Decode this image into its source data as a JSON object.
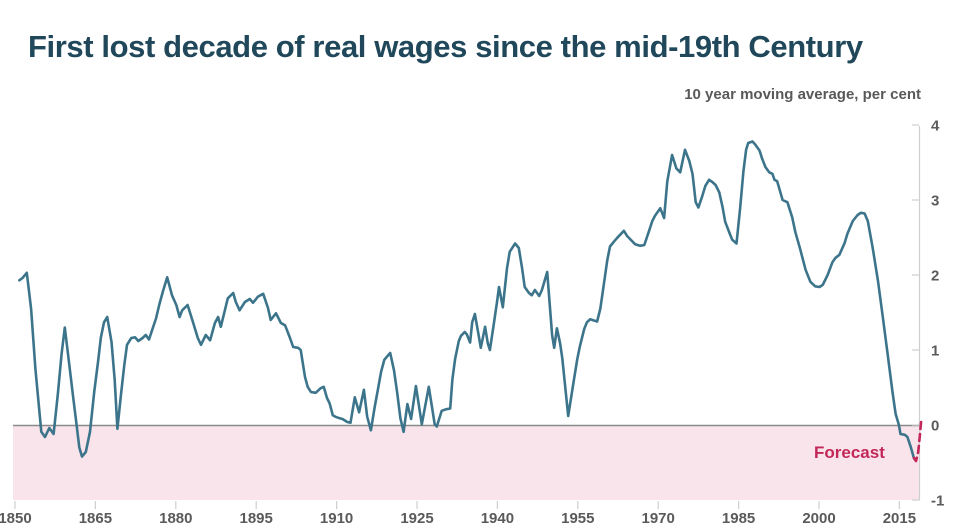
{
  "chart_data": {
    "type": "line",
    "title": "First lost decade of real wages since the mid-19th Century",
    "subtitle": "10 year moving average, per cent",
    "forecast_label": "Forecast",
    "xlim": [
      1850,
      2019.5
    ],
    "ylim": [
      -1,
      4
    ],
    "x_ticks": [
      1850,
      1865,
      1880,
      1895,
      1910,
      1925,
      1940,
      1955,
      1970,
      1985,
      2000,
      2015
    ],
    "y_ticks": [
      -1,
      0,
      1,
      2,
      3,
      4
    ],
    "legend_position": "none",
    "layout": {
      "y_axis_side": "right",
      "zero_line": true,
      "negative_region_shaded": true,
      "gridlines": false
    },
    "colors": {
      "line": "#3c758b",
      "forecast": "#c3275a",
      "negative_region": "#f8e4ea",
      "zero_line": "#8a8a8a",
      "axis": "#cfcfcf",
      "tick_label": "#5a5a5a",
      "title": "#20485a",
      "subtitle": "#595959"
    },
    "series": [
      {
        "id": "real-wages",
        "style": "solid",
        "color": "#3c758b",
        "points": [
          [
            1850.8,
            1.93
          ],
          [
            1851.4,
            1.96
          ],
          [
            1852.2,
            2.03
          ],
          [
            1853.0,
            1.55
          ],
          [
            1853.8,
            0.75
          ],
          [
            1854.9,
            -0.09
          ],
          [
            1855.6,
            -0.16
          ],
          [
            1856.4,
            -0.04
          ],
          [
            1857.2,
            -0.12
          ],
          [
            1858.0,
            0.42
          ],
          [
            1858.7,
            0.95
          ],
          [
            1859.3,
            1.3
          ],
          [
            1860.0,
            0.88
          ],
          [
            1860.8,
            0.4
          ],
          [
            1861.5,
            0.0
          ],
          [
            1862.0,
            -0.3
          ],
          [
            1862.5,
            -0.42
          ],
          [
            1863.2,
            -0.36
          ],
          [
            1864.0,
            -0.09
          ],
          [
            1864.8,
            0.45
          ],
          [
            1865.5,
            0.85
          ],
          [
            1866.0,
            1.16
          ],
          [
            1866.6,
            1.37
          ],
          [
            1867.2,
            1.44
          ],
          [
            1868.0,
            1.11
          ],
          [
            1868.6,
            0.6
          ],
          [
            1869.1,
            -0.05
          ],
          [
            1869.8,
            0.42
          ],
          [
            1870.4,
            0.8
          ],
          [
            1870.9,
            1.07
          ],
          [
            1871.7,
            1.16
          ],
          [
            1872.4,
            1.17
          ],
          [
            1873.0,
            1.12
          ],
          [
            1873.8,
            1.16
          ],
          [
            1874.4,
            1.2
          ],
          [
            1875.0,
            1.14
          ],
          [
            1875.6,
            1.27
          ],
          [
            1876.3,
            1.42
          ],
          [
            1876.9,
            1.6
          ],
          [
            1877.6,
            1.78
          ],
          [
            1878.4,
            1.97
          ],
          [
            1879.3,
            1.73
          ],
          [
            1880.1,
            1.6
          ],
          [
            1880.7,
            1.44
          ],
          [
            1881.2,
            1.53
          ],
          [
            1882.2,
            1.6
          ],
          [
            1883.2,
            1.37
          ],
          [
            1884.1,
            1.16
          ],
          [
            1884.7,
            1.07
          ],
          [
            1885.6,
            1.2
          ],
          [
            1886.4,
            1.13
          ],
          [
            1887.3,
            1.36
          ],
          [
            1887.9,
            1.44
          ],
          [
            1888.4,
            1.31
          ],
          [
            1889.7,
            1.69
          ],
          [
            1890.7,
            1.76
          ],
          [
            1891.2,
            1.64
          ],
          [
            1891.9,
            1.53
          ],
          [
            1892.9,
            1.64
          ],
          [
            1893.8,
            1.68
          ],
          [
            1894.4,
            1.63
          ],
          [
            1895.3,
            1.71
          ],
          [
            1896.3,
            1.75
          ],
          [
            1897.2,
            1.56
          ],
          [
            1897.7,
            1.4
          ],
          [
            1898.7,
            1.49
          ],
          [
            1899.6,
            1.36
          ],
          [
            1900.4,
            1.33
          ],
          [
            1901.3,
            1.16
          ],
          [
            1901.9,
            1.04
          ],
          [
            1902.8,
            1.03
          ],
          [
            1903.3,
            1.0
          ],
          [
            1904.1,
            0.64
          ],
          [
            1904.6,
            0.51
          ],
          [
            1905.2,
            0.44
          ],
          [
            1906.1,
            0.43
          ],
          [
            1907.0,
            0.49
          ],
          [
            1907.6,
            0.51
          ],
          [
            1908.2,
            0.36
          ],
          [
            1908.7,
            0.29
          ],
          [
            1909.3,
            0.13
          ],
          [
            1909.8,
            0.11
          ],
          [
            1910.6,
            0.09
          ],
          [
            1911.1,
            0.08
          ],
          [
            1912.0,
            0.04
          ],
          [
            1912.6,
            0.03
          ],
          [
            1913.4,
            0.37
          ],
          [
            1914.2,
            0.17
          ],
          [
            1915.1,
            0.47
          ],
          [
            1915.7,
            0.11
          ],
          [
            1916.4,
            -0.07
          ],
          [
            1917.1,
            0.24
          ],
          [
            1917.8,
            0.51
          ],
          [
            1918.3,
            0.71
          ],
          [
            1918.9,
            0.87
          ],
          [
            1919.6,
            0.93
          ],
          [
            1920.0,
            0.96
          ],
          [
            1920.7,
            0.73
          ],
          [
            1921.3,
            0.43
          ],
          [
            1921.9,
            0.09
          ],
          [
            1922.5,
            -0.09
          ],
          [
            1923.2,
            0.28
          ],
          [
            1923.9,
            0.08
          ],
          [
            1924.8,
            0.52
          ],
          [
            1925.9,
            0.01
          ],
          [
            1927.2,
            0.51
          ],
          [
            1928.3,
            0.01
          ],
          [
            1928.7,
            -0.02
          ],
          [
            1929.6,
            0.19
          ],
          [
            1930.4,
            0.21
          ],
          [
            1931.2,
            0.22
          ],
          [
            1931.6,
            0.61
          ],
          [
            1932.1,
            0.88
          ],
          [
            1932.8,
            1.12
          ],
          [
            1933.2,
            1.19
          ],
          [
            1933.9,
            1.24
          ],
          [
            1934.3,
            1.21
          ],
          [
            1934.9,
            1.1
          ],
          [
            1935.3,
            1.37
          ],
          [
            1935.8,
            1.48
          ],
          [
            1936.5,
            1.2
          ],
          [
            1936.9,
            1.03
          ],
          [
            1937.7,
            1.31
          ],
          [
            1938.2,
            1.09
          ],
          [
            1938.6,
            1.0
          ],
          [
            1939.3,
            1.33
          ],
          [
            1939.9,
            1.63
          ],
          [
            1940.3,
            1.84
          ],
          [
            1941.0,
            1.57
          ],
          [
            1941.8,
            2.09
          ],
          [
            1942.3,
            2.31
          ],
          [
            1943.3,
            2.42
          ],
          [
            1944.0,
            2.36
          ],
          [
            1944.6,
            2.09
          ],
          [
            1945.1,
            1.84
          ],
          [
            1945.9,
            1.76
          ],
          [
            1946.4,
            1.73
          ],
          [
            1947.0,
            1.8
          ],
          [
            1947.8,
            1.72
          ],
          [
            1948.3,
            1.8
          ],
          [
            1949.3,
            2.04
          ],
          [
            1950.2,
            1.2
          ],
          [
            1950.6,
            1.03
          ],
          [
            1951.1,
            1.29
          ],
          [
            1951.7,
            1.09
          ],
          [
            1952.1,
            0.89
          ],
          [
            1953.2,
            0.12
          ],
          [
            1954.3,
            0.61
          ],
          [
            1954.9,
            0.88
          ],
          [
            1955.4,
            1.05
          ],
          [
            1956.2,
            1.28
          ],
          [
            1956.7,
            1.37
          ],
          [
            1957.3,
            1.41
          ],
          [
            1958.6,
            1.38
          ],
          [
            1959.2,
            1.55
          ],
          [
            1959.9,
            1.9
          ],
          [
            1960.5,
            2.2
          ],
          [
            1961.0,
            2.38
          ],
          [
            1961.8,
            2.45
          ],
          [
            1962.3,
            2.49
          ],
          [
            1963.6,
            2.59
          ],
          [
            1964.2,
            2.52
          ],
          [
            1965.7,
            2.41
          ],
          [
            1966.6,
            2.39
          ],
          [
            1967.4,
            2.4
          ],
          [
            1968.3,
            2.59
          ],
          [
            1968.9,
            2.72
          ],
          [
            1969.4,
            2.79
          ],
          [
            1970.4,
            2.89
          ],
          [
            1971.1,
            2.76
          ],
          [
            1971.7,
            3.25
          ],
          [
            1972.6,
            3.6
          ],
          [
            1973.4,
            3.42
          ],
          [
            1974.1,
            3.37
          ],
          [
            1975.0,
            3.67
          ],
          [
            1975.8,
            3.52
          ],
          [
            1976.4,
            3.35
          ],
          [
            1977.0,
            2.97
          ],
          [
            1977.5,
            2.9
          ],
          [
            1978.2,
            3.05
          ],
          [
            1978.8,
            3.19
          ],
          [
            1979.5,
            3.27
          ],
          [
            1980.1,
            3.24
          ],
          [
            1980.7,
            3.2
          ],
          [
            1981.4,
            3.1
          ],
          [
            1982.0,
            2.91
          ],
          [
            1982.5,
            2.71
          ],
          [
            1983.3,
            2.56
          ],
          [
            1983.8,
            2.47
          ],
          [
            1984.6,
            2.42
          ],
          [
            1985.3,
            2.9
          ],
          [
            1985.9,
            3.38
          ],
          [
            1986.4,
            3.67
          ],
          [
            1986.8,
            3.76
          ],
          [
            1987.6,
            3.78
          ],
          [
            1988.1,
            3.74
          ],
          [
            1988.9,
            3.66
          ],
          [
            1989.4,
            3.55
          ],
          [
            1990.0,
            3.44
          ],
          [
            1990.7,
            3.37
          ],
          [
            1991.3,
            3.35
          ],
          [
            1991.7,
            3.27
          ],
          [
            1992.2,
            3.25
          ],
          [
            1993.2,
            3.0
          ],
          [
            1994.1,
            2.97
          ],
          [
            1995.0,
            2.77
          ],
          [
            1995.6,
            2.57
          ],
          [
            1996.4,
            2.37
          ],
          [
            1997.5,
            2.07
          ],
          [
            1998.4,
            1.91
          ],
          [
            1999.3,
            1.85
          ],
          [
            2000.1,
            1.84
          ],
          [
            2000.7,
            1.87
          ],
          [
            2001.6,
            2.0
          ],
          [
            2002.5,
            2.17
          ],
          [
            2003.1,
            2.23
          ],
          [
            2003.8,
            2.27
          ],
          [
            2004.8,
            2.43
          ],
          [
            2005.3,
            2.55
          ],
          [
            2006.3,
            2.72
          ],
          [
            2007.2,
            2.8
          ],
          [
            2007.8,
            2.83
          ],
          [
            2008.5,
            2.82
          ],
          [
            2009.1,
            2.72
          ],
          [
            2010.0,
            2.37
          ],
          [
            2011.0,
            1.92
          ],
          [
            2011.9,
            1.44
          ],
          [
            2012.8,
            0.95
          ],
          [
            2013.7,
            0.45
          ],
          [
            2014.3,
            0.15
          ],
          [
            2014.9,
            0.0
          ],
          [
            2015.2,
            -0.12
          ],
          [
            2016.0,
            -0.13
          ],
          [
            2016.5,
            -0.16
          ],
          [
            2017.1,
            -0.29
          ],
          [
            2017.7,
            -0.44
          ]
        ]
      },
      {
        "id": "forecast",
        "style": "dashed",
        "color": "#c3275a",
        "points": [
          [
            2017.7,
            -0.44
          ],
          [
            2018.1,
            -0.48
          ],
          [
            2018.5,
            -0.36
          ],
          [
            2018.8,
            -0.15
          ],
          [
            2019.1,
            0.09
          ]
        ]
      }
    ]
  }
}
